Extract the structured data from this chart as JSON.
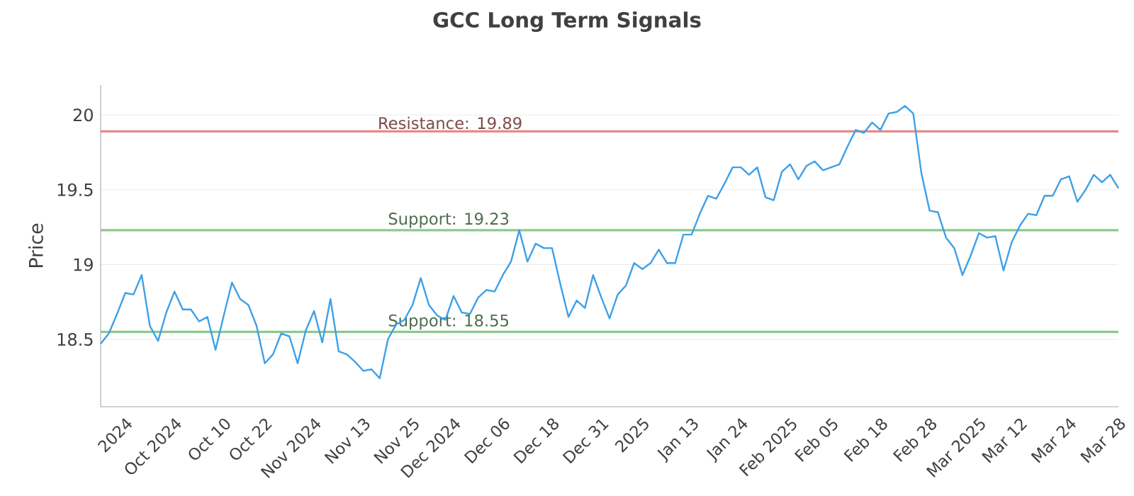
{
  "chart_data": {
    "type": "line",
    "title": "GCC Long Term Signals",
    "ylabel": "Price",
    "categories": [
      null,
      null,
      null,
      "2024",
      null,
      null,
      null,
      null,
      null,
      "Oct 2024",
      null,
      null,
      null,
      null,
      null,
      "Oct 10",
      null,
      null,
      null,
      null,
      "Oct 22",
      null,
      null,
      null,
      null,
      null,
      "Nov 2024",
      null,
      null,
      null,
      null,
      null,
      "Nov 13",
      null,
      null,
      null,
      null,
      null,
      "Nov 25",
      null,
      null,
      null,
      null,
      "Dec 2024",
      null,
      null,
      null,
      null,
      null,
      "Dec 06",
      null,
      null,
      null,
      null,
      null,
      "Dec 18",
      null,
      null,
      null,
      null,
      null,
      "Dec 31",
      null,
      null,
      null,
      null,
      "2025",
      null,
      null,
      null,
      null,
      null,
      "Jan 13",
      null,
      null,
      null,
      null,
      null,
      "Jan 24",
      null,
      null,
      null,
      null,
      null,
      "Feb 2025",
      null,
      null,
      null,
      null,
      "Feb 05",
      null,
      null,
      null,
      null,
      null,
      "Feb 18",
      null,
      null,
      null,
      null,
      null,
      "Feb 28",
      null,
      null,
      null,
      null,
      null,
      "Mar 2025",
      null,
      null,
      null,
      null,
      "Mar 12",
      null,
      null,
      null,
      null,
      null,
      "Mar 24",
      null,
      null,
      null,
      null,
      null,
      "Mar 28"
    ],
    "series": [
      {
        "color": "#3ea0e8",
        "values": [
          18.47,
          18.54,
          18.67,
          18.81,
          18.8,
          18.93,
          18.59,
          18.49,
          18.68,
          18.82,
          18.7,
          18.7,
          18.62,
          18.65,
          18.43,
          18.66,
          18.88,
          18.77,
          18.73,
          18.59,
          18.34,
          18.4,
          18.54,
          18.52,
          18.34,
          18.56,
          18.69,
          18.48,
          18.77,
          18.42,
          18.4,
          18.35,
          18.29,
          18.3,
          18.24,
          18.5,
          18.6,
          18.63,
          18.73,
          18.91,
          18.73,
          18.66,
          18.63,
          18.79,
          18.68,
          18.67,
          18.78,
          18.83,
          18.82,
          18.93,
          19.02,
          19.23,
          19.02,
          19.14,
          19.11,
          19.11,
          18.87,
          18.65,
          18.76,
          18.71,
          18.93,
          18.78,
          18.64,
          18.8,
          18.86,
          19.01,
          18.97,
          19.01,
          19.1,
          19.01,
          19.01,
          19.2,
          19.2,
          19.34,
          19.46,
          19.44,
          19.54,
          19.65,
          19.65,
          19.6,
          19.65,
          19.45,
          19.43,
          19.62,
          19.67,
          19.57,
          19.66,
          19.69,
          19.63,
          19.65,
          19.67,
          19.79,
          19.9,
          19.88,
          19.95,
          19.9,
          20.01,
          20.02,
          20.06,
          20.01,
          19.61,
          19.36,
          19.35,
          19.18,
          19.11,
          18.93,
          19.06,
          19.21,
          19.18,
          19.19,
          18.96,
          19.15,
          19.26,
          19.34,
          19.33,
          19.46,
          19.46,
          19.57,
          19.59,
          19.42,
          19.5,
          19.6,
          19.55,
          19.6,
          19.51
        ]
      }
    ],
    "ylim": [
      18.05,
      20.2
    ],
    "yticks": [
      18.5,
      19,
      19.5,
      20
    ],
    "grid": "y",
    "marker": "none",
    "line_style": "solid",
    "ref_lines": [
      {
        "axis": "y",
        "value": 19.89,
        "label": "Resistance: 19.89",
        "color": "#e88a8a"
      },
      {
        "axis": "y",
        "value": 19.23,
        "label": "Support: 19.23",
        "color": "#8cc98c"
      },
      {
        "axis": "y",
        "value": 18.55,
        "label": "Support: 18.55",
        "color": "#8cc98c"
      }
    ]
  }
}
